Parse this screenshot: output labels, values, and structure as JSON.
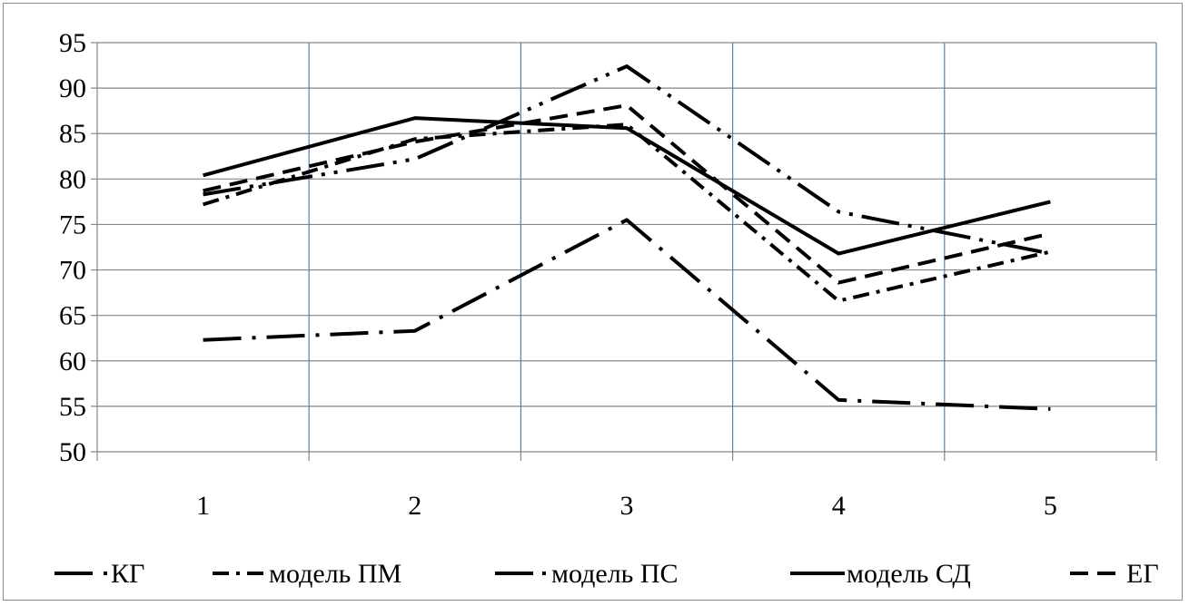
{
  "chart_data": {
    "type": "line",
    "x": [
      "1",
      "2",
      "3",
      "4",
      "5"
    ],
    "ylim": [
      50,
      95
    ],
    "yticks": [
      "50",
      "55",
      "60",
      "65",
      "70",
      "75",
      "80",
      "85",
      "90",
      "95"
    ],
    "grid": {
      "horizontal": true,
      "vertical": true
    },
    "legend_position": "bottom",
    "series": [
      {
        "name": "КГ",
        "values": [
          62.3,
          63.3,
          75.5,
          55.7,
          54.7
        ],
        "style": "long-dash-dot",
        "color": "#000000"
      },
      {
        "name": "модель ПМ",
        "values": [
          77.2,
          84.4,
          86.0,
          66.6,
          72.0
        ],
        "style": "dash-dot",
        "color": "#000000"
      },
      {
        "name": "модель ПС",
        "values": [
          78.3,
          82.2,
          92.4,
          76.4,
          71.8
        ],
        "style": "long-dash-dot-dot",
        "color": "#000000"
      },
      {
        "name": "модель СД",
        "values": [
          80.4,
          86.7,
          85.6,
          71.8,
          77.5
        ],
        "style": "solid",
        "color": "#000000"
      },
      {
        "name": "ЕГ",
        "values": [
          78.7,
          84.1,
          88.1,
          68.6,
          74.0
        ],
        "style": "dash",
        "color": "#000000"
      }
    ],
    "colors": {
      "vertical_grid": "#4f81bd",
      "horizontal_grid": "#868686",
      "frame": "#8c8c8c"
    }
  }
}
